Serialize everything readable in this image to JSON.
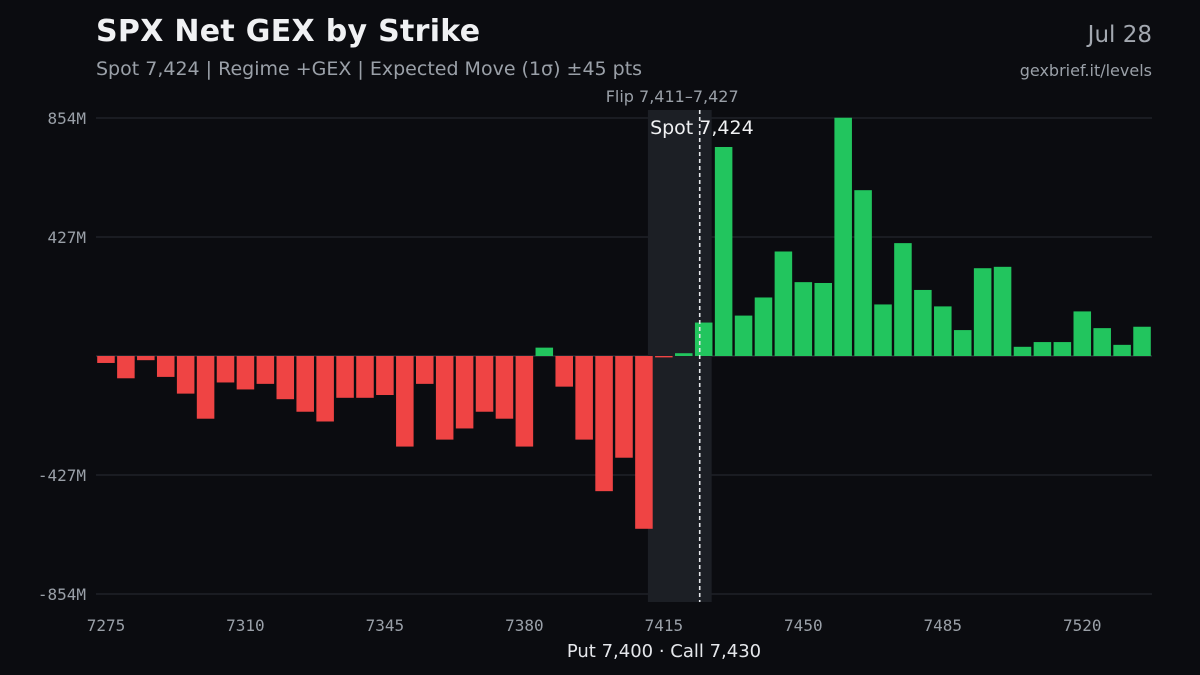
{
  "header": {
    "title": "SPX Net GEX by Strike",
    "subtitle": "Spot 7,424 | Regime +GEX | Expected Move (1σ) ±45 pts",
    "date": "Jul 28",
    "source": "gexbrief.it/levels"
  },
  "colors": {
    "background": "#0b0c10",
    "positive": "#22c55e",
    "negative": "#ef4444",
    "grid": "#2a2d35",
    "flip_zone": "#1c1f25",
    "spot_line": "#e5e7eb",
    "tick_text": "#9aa0a8"
  },
  "chart_data": {
    "type": "bar",
    "x": [
      7275,
      7280,
      7285,
      7290,
      7295,
      7300,
      7305,
      7310,
      7315,
      7320,
      7325,
      7330,
      7335,
      7340,
      7345,
      7350,
      7355,
      7360,
      7365,
      7370,
      7375,
      7380,
      7385,
      7390,
      7395,
      7400,
      7405,
      7410,
      7415,
      7420,
      7425,
      7430,
      7435,
      7440,
      7445,
      7450,
      7455,
      7460,
      7465,
      7470,
      7475,
      7480,
      7485,
      7490,
      7495,
      7500,
      7505,
      7510,
      7515,
      7520,
      7525,
      7530,
      7535
    ],
    "values": [
      -25,
      -80,
      -15,
      -75,
      -135,
      -225,
      -95,
      -120,
      -100,
      -155,
      -200,
      -235,
      -150,
      -150,
      -140,
      -325,
      -100,
      -300,
      -260,
      -200,
      -225,
      -325,
      30,
      -110,
      -300,
      -485,
      -365,
      -620,
      -5,
      10,
      120,
      750,
      145,
      210,
      375,
      265,
      262,
      855,
      595,
      185,
      405,
      237,
      178,
      93,
      315,
      320,
      33,
      50,
      50,
      160,
      100,
      40,
      105
    ],
    "x_ticks": [
      7275,
      7310,
      7345,
      7380,
      7415,
      7450,
      7485,
      7520
    ],
    "y_ticks": [
      854,
      427,
      -427,
      -854
    ],
    "y_tick_labels": [
      "854M",
      "427M",
      "-427M",
      "-854M"
    ],
    "ylim": [
      -854,
      854
    ],
    "xlim": [
      7272.5,
      7537.5
    ],
    "grid": true,
    "flip_zone": {
      "from": 7411,
      "to": 7427,
      "label": "Flip 7,411–7,427"
    },
    "spot": {
      "value": 7424,
      "label": "Spot 7,424"
    },
    "xlabel": "Put 7,400 · Call 7,430"
  }
}
